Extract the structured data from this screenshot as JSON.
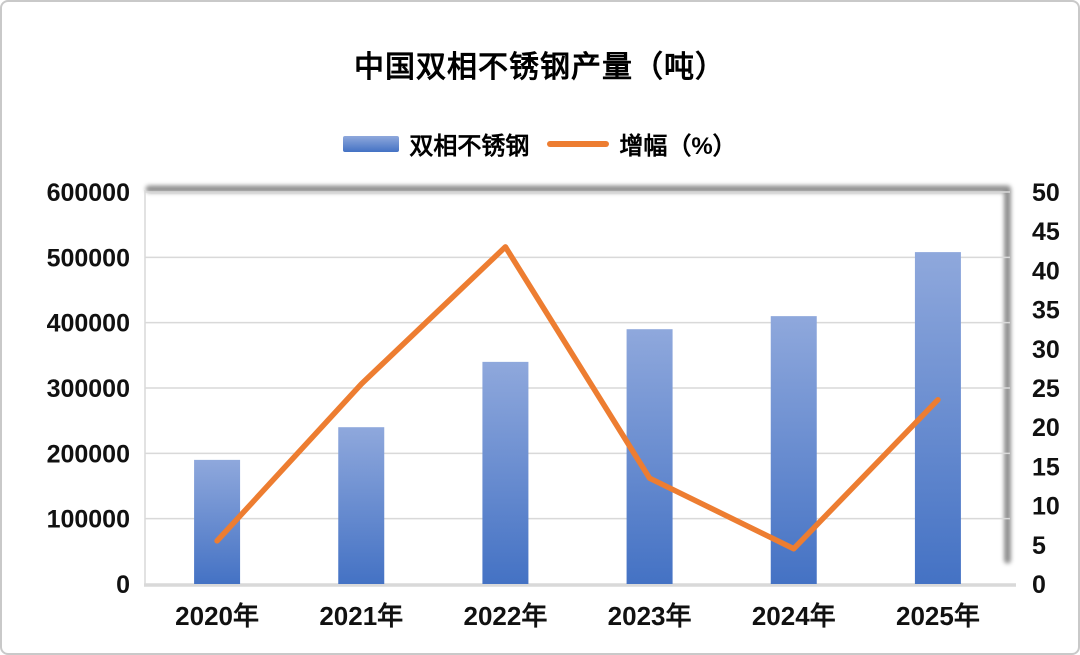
{
  "chart_data": {
    "type": "combo",
    "title": "中国双相不锈钢产量（吨）",
    "categories": [
      "2020年",
      "2021年",
      "2022年",
      "2023年",
      "2024年",
      "2025年"
    ],
    "series": [
      {
        "name": "双相不锈钢",
        "type": "bar",
        "axis": "left",
        "values": [
          190000,
          240000,
          340000,
          390000,
          410000,
          508000
        ],
        "color_top": "#8FA8DC",
        "color_bottom": "#4472C4"
      },
      {
        "name": "增幅（%）",
        "type": "line",
        "axis": "right",
        "values": [
          5.5,
          25.5,
          43,
          13.5,
          4.5,
          23.5
        ],
        "color": "#ED7D31"
      }
    ],
    "left_axis": {
      "min": 0,
      "max": 600000,
      "step": 100000,
      "tick_labels": [
        "0",
        "100000",
        "200000",
        "300000",
        "400000",
        "500000",
        "600000"
      ]
    },
    "right_axis": {
      "min": 0,
      "max": 50,
      "step": 5,
      "tick_labels": [
        "0",
        "5",
        "10",
        "15",
        "20",
        "25",
        "30",
        "35",
        "40",
        "45",
        "50"
      ]
    },
    "grid": true,
    "legend_position": "top",
    "colors": {
      "gridline": "#D9D9D9",
      "axis_line": "#D9D9D9",
      "plot_shadow": "#5F5F5F",
      "canvas_border": "#C9C9C9",
      "text": "#000000"
    }
  }
}
